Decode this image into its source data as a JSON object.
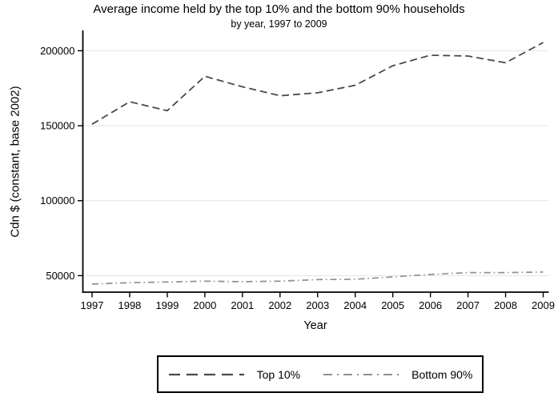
{
  "colors": {
    "background": "#ffffff",
    "axis": "#000000",
    "text": "#000000",
    "grid": "#e3e3e3"
  },
  "chart_data": {
    "type": "line",
    "title": "Average income held by the top 10% and the bottom 90% households",
    "subtitle": "by year, 1997 to 2009",
    "xlabel": "Year",
    "ylabel": "Cdn $ (constant, base 2002)",
    "x": [
      1997,
      1998,
      1999,
      2000,
      2001,
      2002,
      2003,
      2004,
      2005,
      2006,
      2007,
      2008,
      2009
    ],
    "series": [
      {
        "name": "Top 10%",
        "color": "#4a4a4a",
        "dash": "9,5",
        "legend_dash": "14,8",
        "width": 1.8,
        "values": [
          151000,
          166000,
          160000,
          183000,
          176000,
          170000,
          172000,
          177000,
          190000,
          197000,
          196500,
          192000,
          205500
        ]
      },
      {
        "name": "Bottom 90%",
        "color": "#8f8f8f",
        "dash": "8,4,1.5,4",
        "legend_dash": "11,6,2,6",
        "width": 1.7,
        "values": [
          44400,
          45300,
          45800,
          46300,
          46000,
          46300,
          47400,
          47600,
          49200,
          50800,
          52000,
          52000,
          52400
        ]
      }
    ],
    "yticks": [
      50000,
      100000,
      150000,
      200000
    ],
    "ytick_labels": [
      "50000",
      "100000",
      "150000",
      "200000"
    ],
    "ylim": [
      39000,
      212500
    ],
    "grid": true,
    "legend_position": "bottom"
  }
}
